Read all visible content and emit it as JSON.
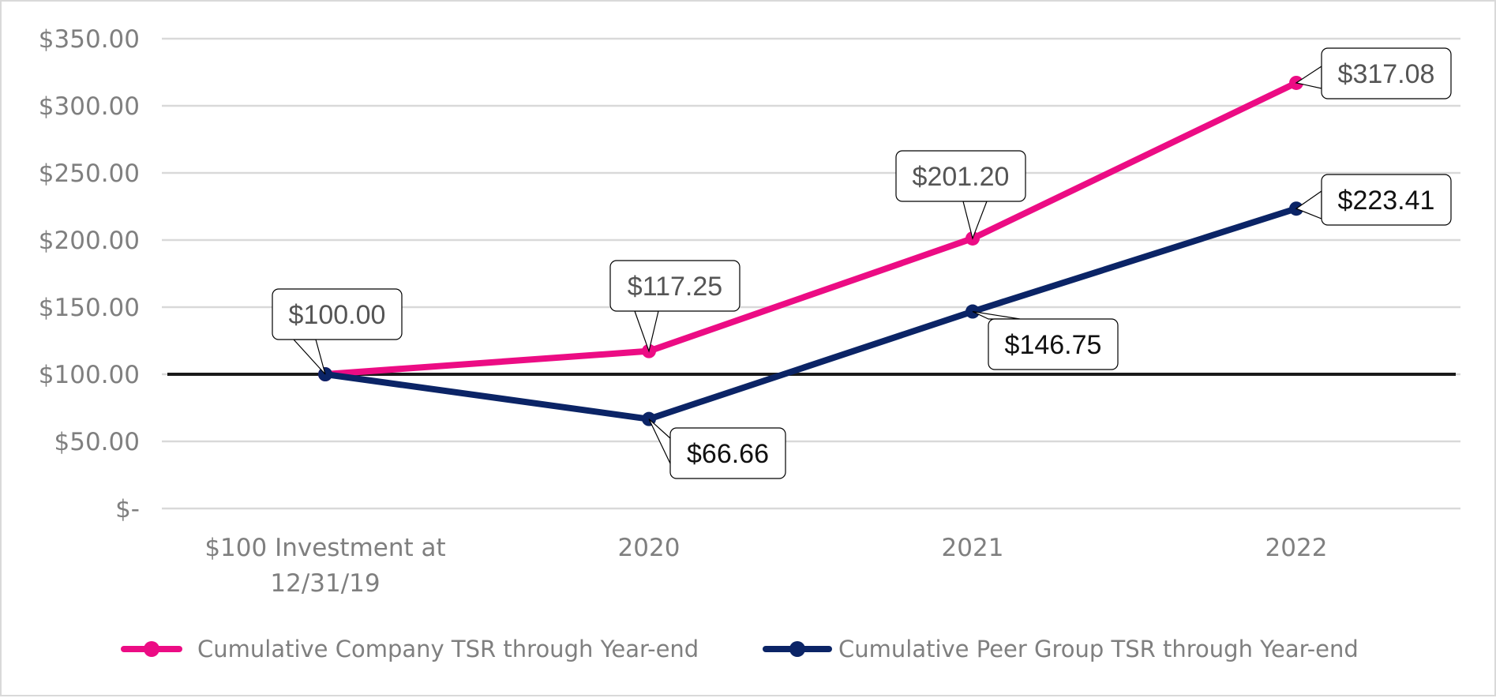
{
  "chart_data": {
    "type": "line",
    "title": "",
    "xlabel": "",
    "ylabel": "",
    "categories": [
      "$100 Investment at 12/31/19",
      "2020",
      "2021",
      "2022"
    ],
    "category_lines": [
      [
        "$100 Investment at",
        "12/31/19"
      ],
      [
        "2020"
      ],
      [
        "2021"
      ],
      [
        "2022"
      ]
    ],
    "ylim": [
      0,
      350
    ],
    "yticks": [
      0,
      50,
      100,
      150,
      200,
      250,
      300,
      350
    ],
    "ytick_labels": [
      "$-",
      "$50.00",
      "$100.00",
      "$150.00",
      "$200.00",
      "$250.00",
      "$300.00",
      "$350.00"
    ],
    "grid": true,
    "reference_line": 100,
    "legend_position": "bottom",
    "series": [
      {
        "name": "Cumulative Company TSR through Year-end",
        "color": "#ec0c84",
        "label_color": "#555555",
        "values": [
          100.0,
          117.25,
          201.2,
          317.08
        ],
        "labels": [
          "$100.00",
          "$117.25",
          "$201.20",
          "$317.08"
        ]
      },
      {
        "name": "Cumulative Peer Group TSR through Year-end",
        "color": "#0b2466",
        "label_color": "#111111",
        "values": [
          100.0,
          66.66,
          146.75,
          223.41
        ],
        "labels": [
          "",
          "$66.66",
          "$146.75",
          "$223.41"
        ]
      }
    ]
  }
}
